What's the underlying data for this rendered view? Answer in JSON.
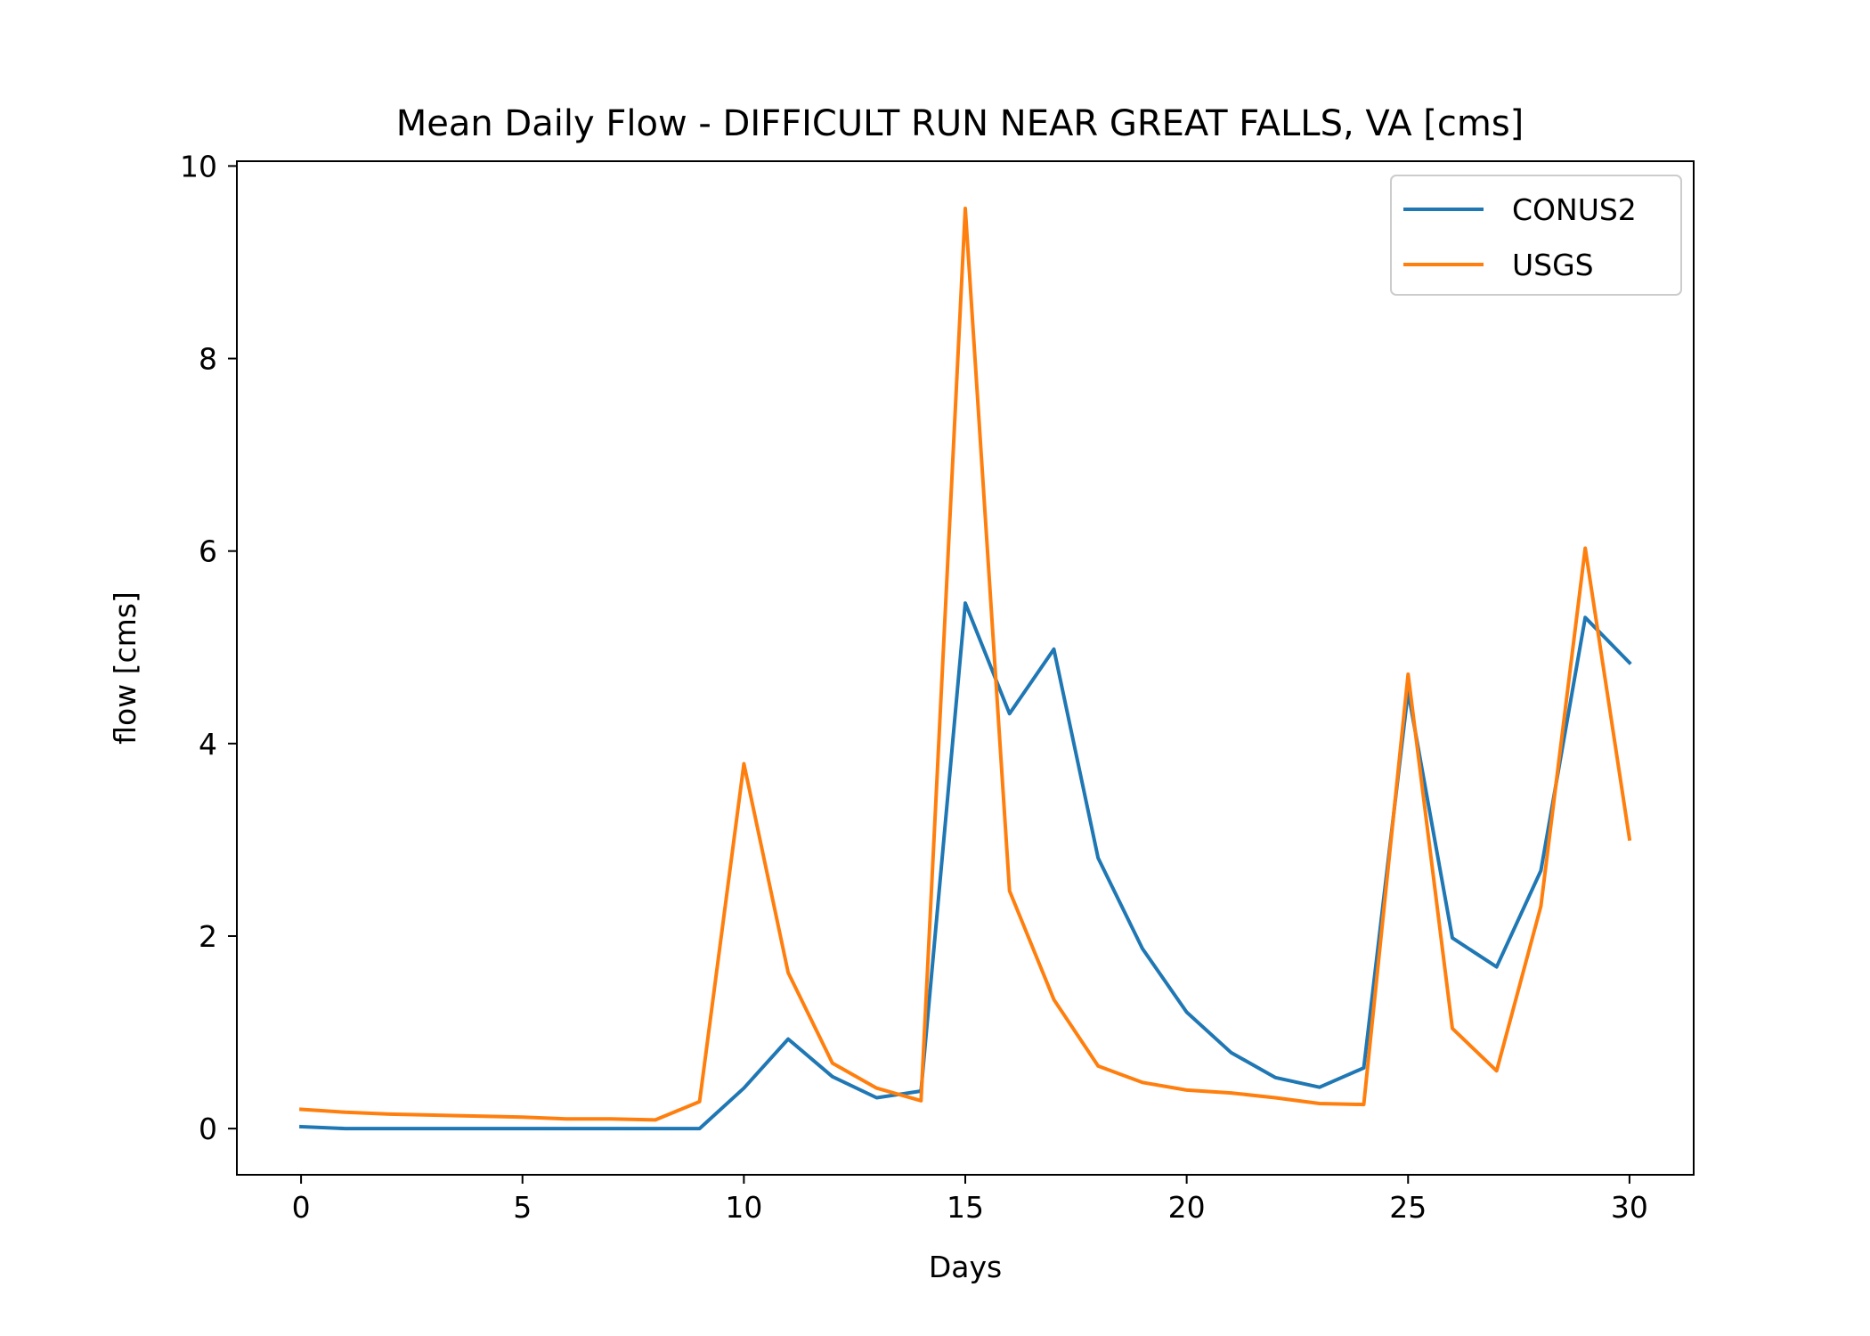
{
  "chart_data": {
    "type": "line",
    "title": "Mean Daily Flow - DIFFICULT RUN NEAR GREAT FALLS, VA [cms]",
    "xlabel": "Days",
    "ylabel": "flow [cms]",
    "xlim": [
      -1.45,
      31.45
    ],
    "ylim": [
      -0.48,
      10.05
    ],
    "xticks": [
      0,
      5,
      10,
      15,
      20,
      25,
      30
    ],
    "xtick_labels": [
      "0",
      "5",
      "10",
      "15",
      "20",
      "25",
      "30"
    ],
    "yticks": [
      0,
      2,
      4,
      6,
      8,
      10
    ],
    "ytick_labels": [
      "0",
      "2",
      "4",
      "6",
      "8",
      "10"
    ],
    "grid": false,
    "legend_position": "top-right",
    "x": [
      0,
      1,
      2,
      3,
      4,
      5,
      6,
      7,
      8,
      9,
      10,
      11,
      12,
      13,
      14,
      15,
      16,
      17,
      18,
      19,
      20,
      21,
      22,
      23,
      24,
      25,
      26,
      27,
      28,
      29,
      30
    ],
    "series": [
      {
        "name": "CONUS2",
        "color": "#1f77b4",
        "values": [
          0.02,
          0.0,
          0.0,
          0.0,
          0.0,
          0.0,
          0.0,
          0.0,
          0.0,
          0.0,
          0.42,
          0.93,
          0.54,
          0.32,
          0.39,
          5.46,
          4.31,
          4.98,
          2.81,
          1.87,
          1.21,
          0.79,
          0.53,
          0.43,
          0.63,
          4.54,
          1.98,
          1.68,
          2.68,
          5.31,
          4.84
        ]
      },
      {
        "name": "USGS",
        "color": "#ff7f0e",
        "values": [
          0.2,
          0.17,
          0.15,
          0.14,
          0.13,
          0.12,
          0.1,
          0.1,
          0.09,
          0.28,
          3.79,
          1.62,
          0.68,
          0.42,
          0.29,
          9.56,
          2.47,
          1.34,
          0.65,
          0.48,
          0.4,
          0.37,
          0.32,
          0.26,
          0.25,
          4.72,
          1.04,
          0.6,
          2.31,
          6.03,
          3.01
        ]
      }
    ]
  }
}
